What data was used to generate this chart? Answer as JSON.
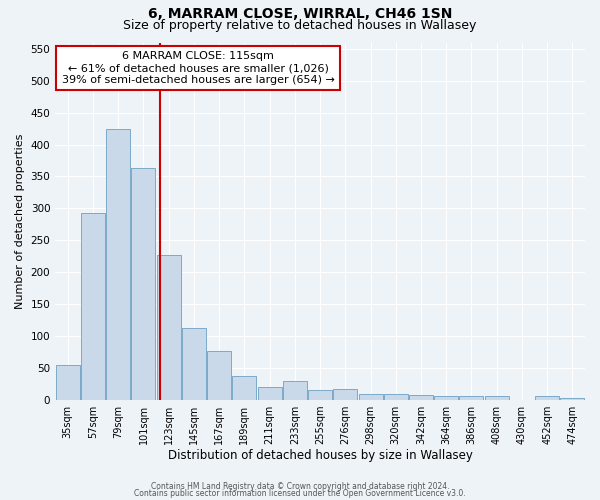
{
  "title": "6, MARRAM CLOSE, WIRRAL, CH46 1SN",
  "subtitle": "Size of property relative to detached houses in Wallasey",
  "xlabel": "Distribution of detached houses by size in Wallasey",
  "ylabel": "Number of detached properties",
  "bar_labels": [
    "35sqm",
    "57sqm",
    "79sqm",
    "101sqm",
    "123sqm",
    "145sqm",
    "167sqm",
    "189sqm",
    "211sqm",
    "233sqm",
    "255sqm",
    "276sqm",
    "298sqm",
    "320sqm",
    "342sqm",
    "364sqm",
    "386sqm",
    "408sqm",
    "430sqm",
    "452sqm",
    "474sqm"
  ],
  "bar_values": [
    55,
    293,
    425,
    363,
    226,
    113,
    76,
    37,
    20,
    29,
    15,
    16,
    9,
    9,
    7,
    6,
    5,
    5,
    0,
    5,
    3
  ],
  "bar_color": "#c9d9ea",
  "bar_edgecolor": "#7aaac8",
  "property_line_label": "6 MARRAM CLOSE: 115sqm",
  "annotation_line1": "← 61% of detached houses are smaller (1,026)",
  "annotation_line2": "39% of semi-detached houses are larger (654) →",
  "ylim": [
    0,
    560
  ],
  "yticks": [
    0,
    50,
    100,
    150,
    200,
    250,
    300,
    350,
    400,
    450,
    500,
    550
  ],
  "bg_color": "#eef3f8",
  "plot_bg_color": "#eef3f8",
  "footer1": "Contains HM Land Registry data © Crown copyright and database right 2024.",
  "footer2": "Contains public sector information licensed under the Open Government Licence v3.0.",
  "title_fontsize": 10,
  "subtitle_fontsize": 9,
  "red_line_color": "#cc0000",
  "box_facecolor": "#ffffff",
  "box_edgecolor": "#cc0000"
}
